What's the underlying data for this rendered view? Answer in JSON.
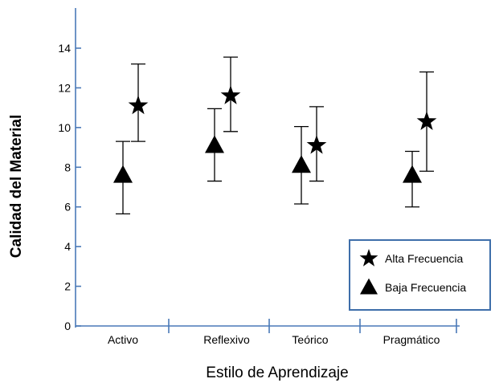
{
  "chart_data": {
    "type": "scatter",
    "categories": [
      "Activo",
      "Reflexivo",
      "Teórico",
      "Pragmático"
    ],
    "xlabel": "Estilo de Aprendizaje",
    "ylabel": "Calidad del Material",
    "ylim": [
      0,
      16
    ],
    "yticks": [
      0,
      2,
      4,
      6,
      8,
      10,
      12,
      14
    ],
    "grid": false,
    "legend_position": "bottom-right",
    "series": [
      {
        "name": "Alta Frecuencia",
        "marker": "star",
        "color": "#000000",
        "values": [
          11.1,
          11.6,
          9.1,
          10.3
        ],
        "error_low": [
          9.3,
          9.8,
          7.3,
          7.8
        ],
        "error_high": [
          13.2,
          13.55,
          11.05,
          12.8
        ]
      },
      {
        "name": "Baja Frecuencia",
        "marker": "triangle",
        "color": "#000000",
        "values": [
          7.6,
          9.1,
          8.1,
          7.6
        ],
        "error_low": [
          5.65,
          7.3,
          6.15,
          6.0
        ],
        "error_high": [
          9.3,
          10.95,
          10.05,
          8.8
        ]
      }
    ]
  }
}
